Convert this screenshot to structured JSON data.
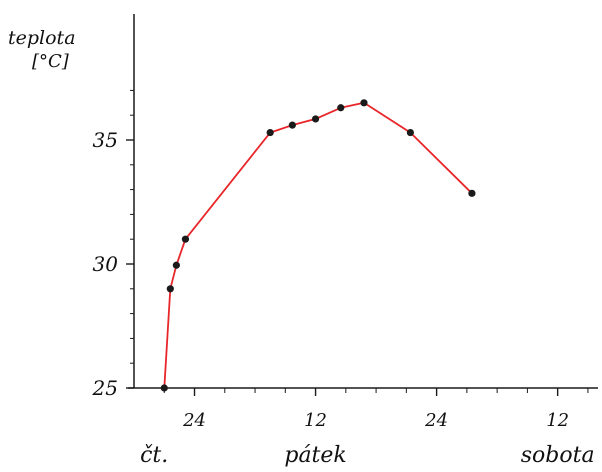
{
  "chart_data": {
    "type": "line",
    "title": "",
    "ylabel": "teplota",
    "yunit": "[°C]",
    "xlabel": "",
    "ylim": [
      25,
      37
    ],
    "y_ticks": [
      25,
      30,
      35
    ],
    "xlim": [
      18,
      64
    ],
    "x_ticks": [
      {
        "pos": 24,
        "label": "24"
      },
      {
        "pos": 36,
        "label": "12"
      },
      {
        "pos": 48,
        "label": "24"
      },
      {
        "pos": 60,
        "label": "12"
      }
    ],
    "day_labels": [
      {
        "pos": 20,
        "label": "čt."
      },
      {
        "pos": 36,
        "label": "pátek"
      },
      {
        "pos": 60,
        "label": "sobota"
      }
    ],
    "grid": false,
    "legend": "none",
    "line_color": "#e8262a",
    "marker_color": "#1a1a1a",
    "series": [
      {
        "x": [
          21.0,
          21.6,
          22.2,
          23.1,
          31.5,
          33.7,
          36.0,
          38.5,
          40.8,
          45.4,
          51.5
        ],
        "y": [
          25.0,
          29.0,
          29.95,
          31.0,
          35.3,
          35.6,
          35.85,
          36.3,
          36.5,
          35.3,
          32.85
        ]
      }
    ]
  }
}
